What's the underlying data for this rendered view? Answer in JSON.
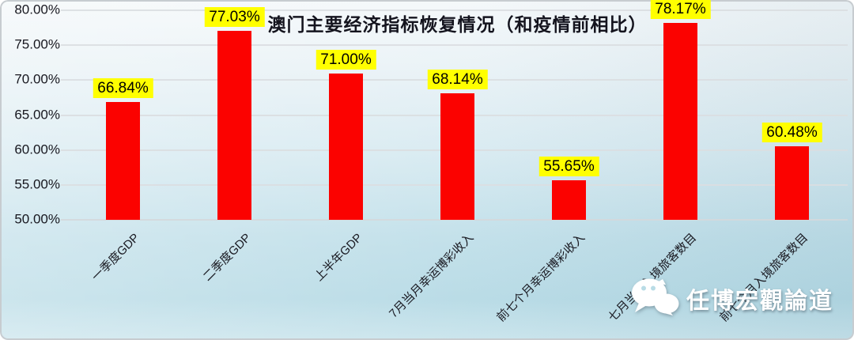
{
  "title": "澳门主要经济指标恢复情况（和疫情前相比）",
  "watermark": {
    "text": "任博宏觀論道",
    "icon": "wechat-icon"
  },
  "colors": {
    "bar": "#fb0200",
    "value_label_bg": "#ffff00",
    "value_label_text": "#000000",
    "gridline": "#dadee1",
    "title_text": "#14141e",
    "background_top": "#f4f8fa",
    "background_bottom": "#b6dae5",
    "watermark_text": "#ffffff"
  },
  "chart_data": {
    "type": "bar",
    "title": "澳门主要经济指标恢复情况（和疫情前相比）",
    "categories": [
      "一季度GDP",
      "二季度GDP",
      "上半年GDP",
      "7月当月幸运博彩收入",
      "前七个月幸运博彩收入",
      "七月当月入境旅客数目",
      "前七个月入境旅客数目"
    ],
    "values": [
      66.84,
      77.03,
      71.0,
      68.14,
      55.65,
      78.17,
      60.48
    ],
    "value_labels": [
      "66.84%",
      "77.03%",
      "71.00%",
      "68.14%",
      "55.65%",
      "78.17%",
      "60.48%"
    ],
    "xlabel": "",
    "ylabel": "",
    "ylim": [
      50,
      80
    ],
    "ytick_step": 5,
    "ytick_labels": [
      "50.00%",
      "55.00%",
      "60.00%",
      "65.00%",
      "70.00%",
      "75.00%",
      "80.00%"
    ],
    "grid": true,
    "legend": false,
    "bar_color": "#fb0200",
    "label_style": "yellow-box-above-bar",
    "xtick_rotation_deg": 45
  }
}
